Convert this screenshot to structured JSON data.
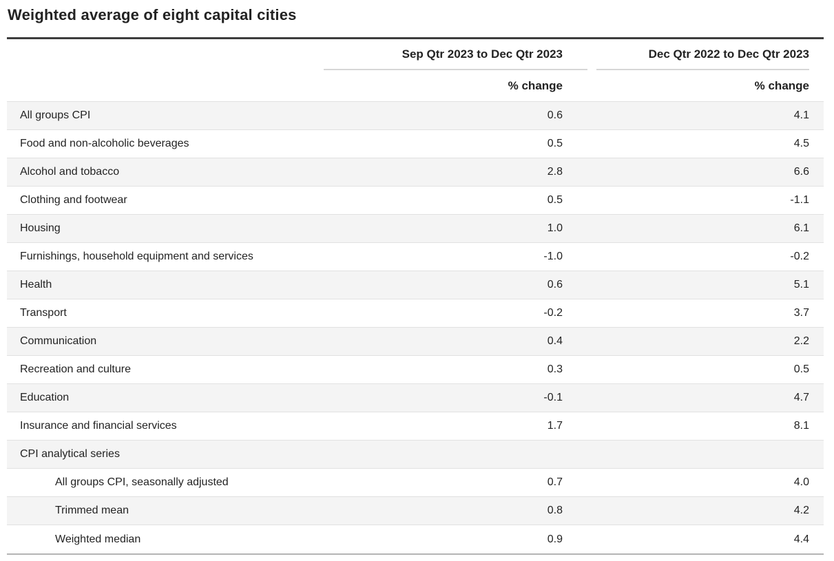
{
  "page": {
    "title": "Weighted average of eight capital cities"
  },
  "table": {
    "column_headers": [
      "Sep Qtr 2023 to Dec Qtr 2023",
      "Dec Qtr 2022 to Dec Qtr 2023"
    ],
    "unit_label": "% change",
    "rows": [
      {
        "label": "All groups CPI",
        "quarterly": "0.6",
        "annual": "4.1",
        "indent": false
      },
      {
        "label": "Food and non-alcoholic beverages",
        "quarterly": "0.5",
        "annual": "4.5",
        "indent": false
      },
      {
        "label": "Alcohol and tobacco",
        "quarterly": "2.8",
        "annual": "6.6",
        "indent": false
      },
      {
        "label": "Clothing and footwear",
        "quarterly": "0.5",
        "annual": "-1.1",
        "indent": false
      },
      {
        "label": "Housing",
        "quarterly": "1.0",
        "annual": "6.1",
        "indent": false
      },
      {
        "label": "Furnishings, household equipment and services",
        "quarterly": "-1.0",
        "annual": "-0.2",
        "indent": false
      },
      {
        "label": "Health",
        "quarterly": "0.6",
        "annual": "5.1",
        "indent": false
      },
      {
        "label": "Transport",
        "quarterly": "-0.2",
        "annual": "3.7",
        "indent": false
      },
      {
        "label": "Communication",
        "quarterly": "0.4",
        "annual": "2.2",
        "indent": false
      },
      {
        "label": "Recreation and culture",
        "quarterly": "0.3",
        "annual": "0.5",
        "indent": false
      },
      {
        "label": "Education",
        "quarterly": "-0.1",
        "annual": "4.7",
        "indent": false
      },
      {
        "label": "Insurance and financial services",
        "quarterly": "1.7",
        "annual": "8.1",
        "indent": false
      },
      {
        "label": "CPI analytical series",
        "quarterly": "",
        "annual": "",
        "indent": false
      },
      {
        "label": "All groups CPI, seasonally adjusted",
        "quarterly": "0.7",
        "annual": "4.0",
        "indent": true
      },
      {
        "label": "Trimmed mean",
        "quarterly": "0.8",
        "annual": "4.2",
        "indent": true
      },
      {
        "label": "Weighted median",
        "quarterly": "0.9",
        "annual": "4.4",
        "indent": true
      }
    ]
  },
  "colors": {
    "accent-border": "#3d3d3d",
    "alt-row-bg": "#f4f4f4",
    "separator": "#e1e1e1",
    "header-underline": "#d6d6d6",
    "bottom-border": "#b4b4b4",
    "text": "#232323"
  },
  "chart_data": {
    "type": "table",
    "title": "Weighted average of eight capital cities",
    "columns": [
      "Category",
      "Sep Qtr 2023 to Dec Qtr 2023 (% change)",
      "Dec Qtr 2022 to Dec Qtr 2023 (% change)"
    ],
    "rows": [
      [
        "All groups CPI",
        0.6,
        4.1
      ],
      [
        "Food and non-alcoholic beverages",
        0.5,
        4.5
      ],
      [
        "Alcohol and tobacco",
        2.8,
        6.6
      ],
      [
        "Clothing and footwear",
        0.5,
        -1.1
      ],
      [
        "Housing",
        1.0,
        6.1
      ],
      [
        "Furnishings, household equipment and services",
        -1.0,
        -0.2
      ],
      [
        "Health",
        0.6,
        5.1
      ],
      [
        "Transport",
        -0.2,
        3.7
      ],
      [
        "Communication",
        0.4,
        2.2
      ],
      [
        "Recreation and culture",
        0.3,
        0.5
      ],
      [
        "Education",
        -0.1,
        4.7
      ],
      [
        "Insurance and financial services",
        1.7,
        8.1
      ],
      [
        "CPI analytical series",
        null,
        null
      ],
      [
        "All groups CPI, seasonally adjusted",
        0.7,
        4.0
      ],
      [
        "Trimmed mean",
        0.8,
        4.2
      ],
      [
        "Weighted median",
        0.9,
        4.4
      ]
    ]
  }
}
